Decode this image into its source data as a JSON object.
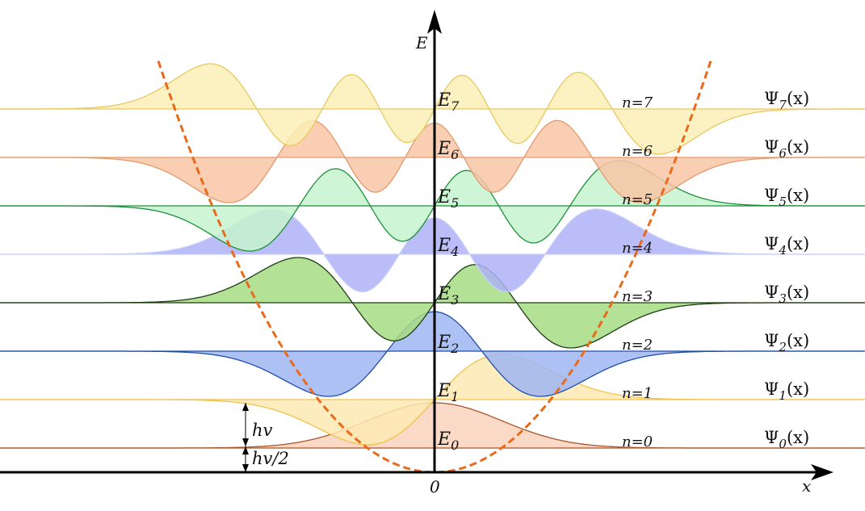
{
  "axes": {
    "y_label": "E",
    "x_label": "x",
    "origin_label": "0"
  },
  "quanta": {
    "spacing_label": "hv",
    "zero_point_label": "hv/2"
  },
  "levels": [
    {
      "n": 0,
      "energy_label": "E",
      "energy_sub": "0",
      "n_label": "n=0",
      "psi_symbol": "Ψ",
      "psi_sub": "0",
      "psi_arg": "(x)",
      "fill": "#f9d2bd",
      "stroke": "#a8552a"
    },
    {
      "n": 1,
      "energy_label": "E",
      "energy_sub": "1",
      "n_label": "n=1",
      "psi_symbol": "Ψ",
      "psi_sub": "1",
      "psi_arg": "(x)",
      "fill": "#fde9b3",
      "stroke": "#f0c24a"
    },
    {
      "n": 2,
      "energy_label": "E",
      "energy_sub": "2",
      "n_label": "n=2",
      "psi_symbol": "Ψ",
      "psi_sub": "2",
      "psi_arg": "(x)",
      "fill": "#9fb6f3",
      "stroke": "#1f4fa8"
    },
    {
      "n": 3,
      "energy_label": "E",
      "energy_sub": "3",
      "n_label": "n=3",
      "psi_symbol": "Ψ",
      "psi_sub": "3",
      "psi_arg": "(x)",
      "fill": "#a6dc82",
      "stroke": "#1d3d12"
    },
    {
      "n": 4,
      "energy_label": "E",
      "energy_sub": "4",
      "n_label": "n=4",
      "psi_symbol": "Ψ",
      "psi_sub": "4",
      "psi_arg": "(x)",
      "fill": "#aeb2f7",
      "stroke": "#c7cffb"
    },
    {
      "n": 5,
      "energy_label": "E",
      "energy_sub": "5",
      "n_label": "n=5",
      "psi_symbol": "Ψ",
      "psi_sub": "5",
      "psi_arg": "(x)",
      "fill": "#c6f5cf",
      "stroke": "#1f8f3a"
    },
    {
      "n": 6,
      "energy_label": "E",
      "energy_sub": "6",
      "n_label": "n=6",
      "psi_symbol": "Ψ",
      "psi_sub": "6",
      "psi_arg": "(x)",
      "fill": "#f8c6a6",
      "stroke": "#e39a6e"
    },
    {
      "n": 7,
      "energy_label": "E",
      "energy_sub": "7",
      "n_label": "n=7",
      "psi_symbol": "Ψ",
      "psi_sub": "7",
      "psi_arg": "(x)",
      "fill": "#fcefb6",
      "stroke": "#e8c860"
    }
  ],
  "potential": {
    "style": "dashed",
    "color": "#e86a1a"
  }
}
